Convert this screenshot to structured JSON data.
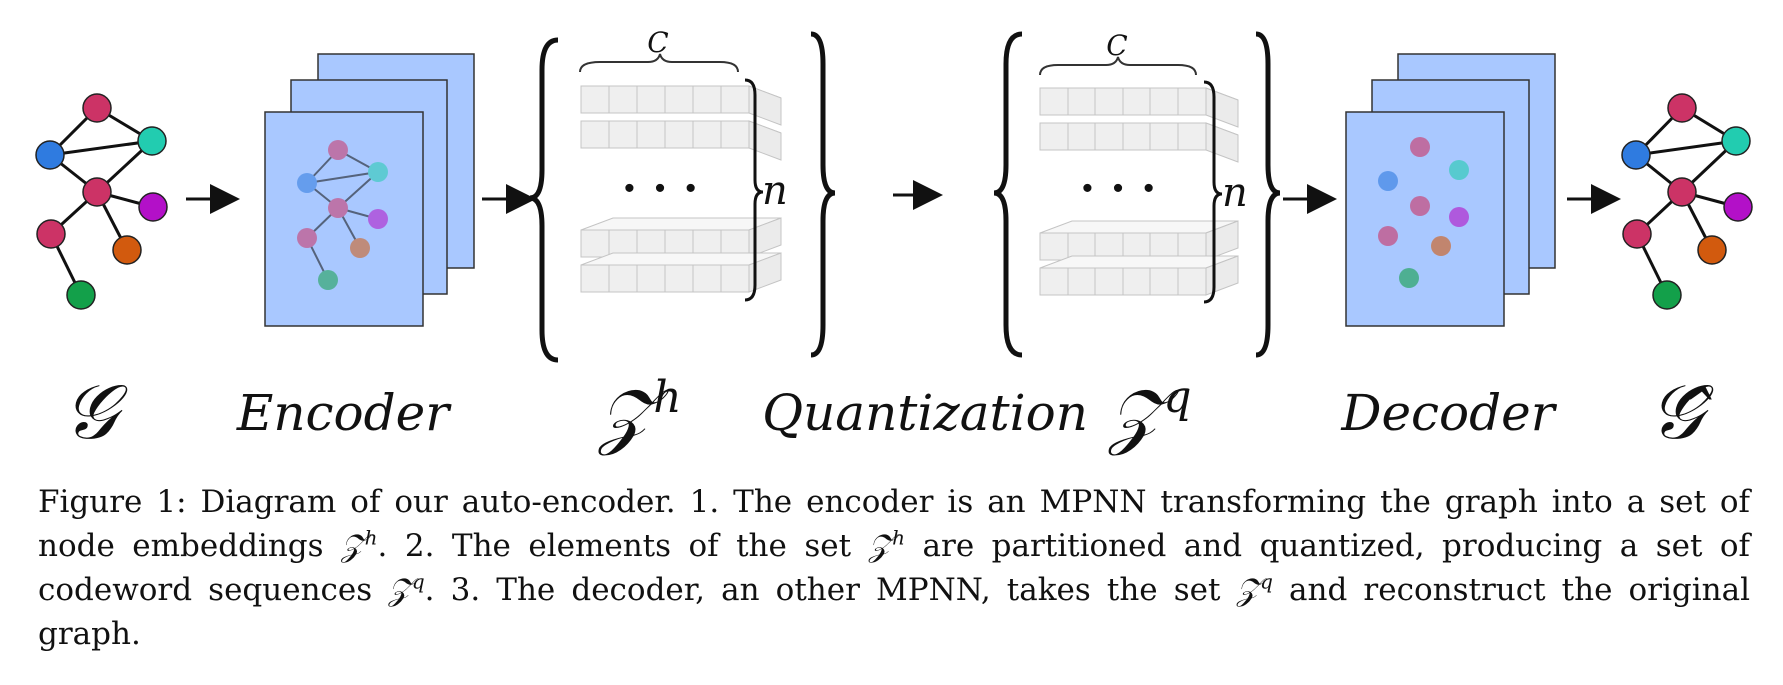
{
  "figure": {
    "labels": {
      "input_graph": "𝒢",
      "encoder": "Encoder",
      "latent_h_base": "𝒵",
      "latent_h_sup": "h",
      "quantization": "Quantization",
      "latent_q_base": "𝒵",
      "latent_q_sup": "q",
      "decoder": "Decoder",
      "output_graph": "𝒢̂"
    },
    "codeword_dim_label": "C",
    "set_size_label": "n",
    "ellipsis": "· · ·",
    "node_colors": {
      "pink": "#cc3366",
      "blue": "#2f7be0",
      "teal": "#22ccb0",
      "purple": "#b310c8",
      "orange": "#d25a0e",
      "green": "#13a04a"
    },
    "panel_color": "#a9c8ff"
  },
  "caption": {
    "figure_num": "Figure 1:",
    "part1": "Diagram of our auto-encoder.  1.  The encoder is an MPNN transforming the graph into a set of node embeddings",
    "z": "𝒵",
    "h": "h",
    "q": "q",
    "part2": ".  2.  The elements of the set",
    "part3": "are partitioned and quantized, producing a set of codeword sequences",
    "part4": ".  3.  The decoder, an other MPNN, takes the set",
    "part5": "and reconstruct the original graph."
  }
}
